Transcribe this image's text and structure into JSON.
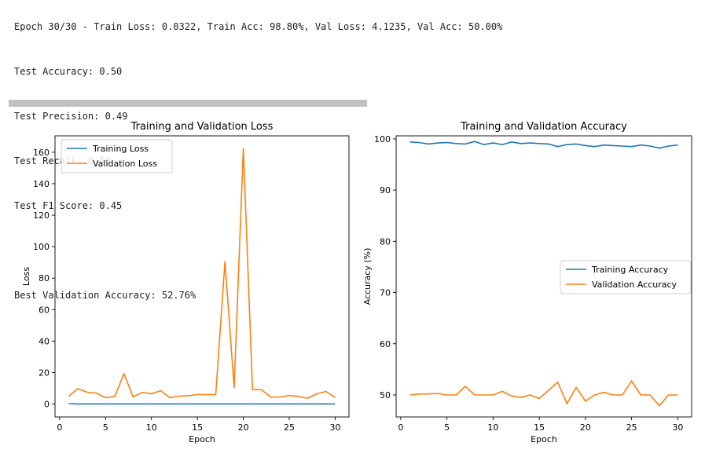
{
  "output": {
    "lines": [
      "Epoch 30/30 - Train Loss: 0.0322, Train Acc: 98.80%, Val Loss: 4.1235, Val Acc: 50.00%",
      "Test Accuracy: 0.50",
      "Test Precision: 0.49",
      "Test Recall: 0.50",
      "Test F1 Score: 0.45",
      "",
      "Best Validation Accuracy: 52.76%"
    ]
  },
  "chart_data": [
    {
      "type": "line",
      "title": "Training and Validation Loss",
      "xlabel": "Epoch",
      "ylabel": "Loss",
      "xlim": [
        -0.5,
        31.5
      ],
      "ylim": [
        -8.2,
        170.4
      ],
      "xticks": [
        0,
        5,
        10,
        15,
        20,
        25,
        30
      ],
      "yticks": [
        0,
        20,
        40,
        60,
        80,
        100,
        120,
        140,
        160
      ],
      "legend": "upper left",
      "grid": false,
      "x": [
        1,
        2,
        3,
        4,
        5,
        6,
        7,
        8,
        9,
        10,
        11,
        12,
        13,
        14,
        15,
        16,
        17,
        18,
        19,
        20,
        21,
        22,
        23,
        24,
        25,
        26,
        27,
        28,
        29,
        30
      ],
      "series": [
        {
          "name": "Training Loss",
          "color": "#1f77b4",
          "values": [
            0.3,
            0.1,
            0.1,
            0.1,
            0.1,
            0.1,
            0.1,
            0.1,
            0.1,
            0.1,
            0.1,
            0.1,
            0.1,
            0.1,
            0.1,
            0.1,
            0.1,
            0.1,
            0.1,
            0.1,
            0.1,
            0.1,
            0.1,
            0.1,
            0.1,
            0.1,
            0.1,
            0.1,
            0.1,
            0.03
          ]
        },
        {
          "name": "Validation Loss",
          "color": "#ff7f0e",
          "values": [
            5,
            9.8,
            7.5,
            7,
            4,
            4.8,
            19.3,
            4.6,
            7.4,
            6.5,
            8.5,
            4,
            5,
            5.2,
            6,
            6,
            6,
            90.5,
            10.5,
            162.4,
            9.3,
            9,
            4.4,
            4.5,
            5.4,
            4.8,
            3.7,
            6.5,
            8,
            4.1
          ]
        }
      ]
    },
    {
      "type": "line",
      "title": "Training and Validation Accuracy",
      "xlabel": "Epoch",
      "ylabel": "Accuracy (%)",
      "xlim": [
        -0.5,
        31.5
      ],
      "ylim": [
        45.7,
        100.6
      ],
      "xticks": [
        0,
        5,
        10,
        15,
        20,
        25,
        30
      ],
      "yticks": [
        50,
        60,
        70,
        80,
        90,
        100
      ],
      "legend": "center right",
      "grid": false,
      "x": [
        1,
        2,
        3,
        4,
        5,
        6,
        7,
        8,
        9,
        10,
        11,
        12,
        13,
        14,
        15,
        16,
        17,
        18,
        19,
        20,
        21,
        22,
        23,
        24,
        25,
        26,
        27,
        28,
        29,
        30
      ],
      "series": [
        {
          "name": "Training Accuracy",
          "color": "#1f77b4",
          "values": [
            99.4,
            99.3,
            99,
            99.2,
            99.3,
            99.1,
            99.0,
            99.5,
            98.9,
            99.2,
            98.9,
            99.4,
            99.1,
            99.2,
            99.1,
            99,
            98.5,
            98.9,
            99,
            98.7,
            98.5,
            98.8,
            98.7,
            98.6,
            98.5,
            98.8,
            98.6,
            98.2,
            98.6,
            98.8
          ]
        },
        {
          "name": "Validation Accuracy",
          "color": "#ff7f0e",
          "values": [
            50,
            50.2,
            50.2,
            50.3,
            50,
            50,
            51.7,
            50,
            50,
            50,
            50.7,
            49.8,
            49.5,
            50,
            49.3,
            50.9,
            52.5,
            48.3,
            51.5,
            48.8,
            50,
            50.5,
            50,
            50,
            52.76,
            50,
            50,
            47.9,
            50,
            50
          ]
        }
      ]
    }
  ]
}
